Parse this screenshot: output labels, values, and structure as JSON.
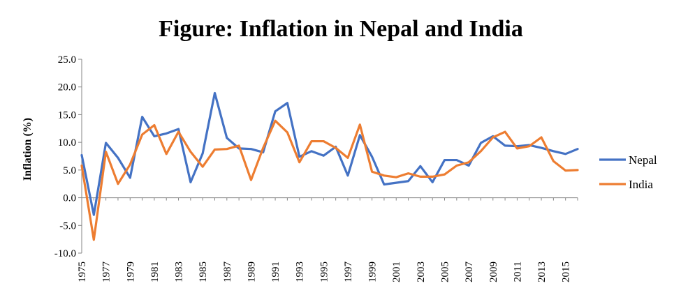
{
  "chart_data": {
    "type": "line",
    "title": "Figure: Inflation in Nepal and India",
    "xlabel": "",
    "ylabel": "Inflation (%)",
    "ylim": [
      -10,
      25
    ],
    "yticks": [
      "25.0",
      "20.0",
      "15.0",
      "10.0",
      "5.0",
      "0.0",
      "-5.0",
      "-10.0"
    ],
    "ytick_values": [
      25,
      20,
      15,
      10,
      5,
      0,
      -5,
      -10
    ],
    "x": [
      1975,
      1976,
      1977,
      1978,
      1979,
      1980,
      1981,
      1982,
      1983,
      1984,
      1985,
      1986,
      1987,
      1988,
      1989,
      1990,
      1991,
      1992,
      1993,
      1994,
      1995,
      1996,
      1997,
      1998,
      1999,
      2000,
      2001,
      2002,
      2003,
      2004,
      2005,
      2006,
      2007,
      2008,
      2009,
      2010,
      2011,
      2012,
      2013,
      2014,
      2015,
      2016
    ],
    "xtick_labels": [
      "1975",
      "1977",
      "1979",
      "1981",
      "1983",
      "1985",
      "1987",
      "1989",
      "1991",
      "1993",
      "1995",
      "1997",
      "1999",
      "2001",
      "2003",
      "2005",
      "2007",
      "2009",
      "2011",
      "2013",
      "2015"
    ],
    "legend_position": "right",
    "grid": false,
    "series": [
      {
        "name": "Nepal",
        "color": "#4472C4",
        "values": [
          7.7,
          -3.1,
          9.9,
          7.2,
          3.6,
          14.6,
          11.1,
          11.6,
          12.4,
          2.8,
          8.0,
          18.9,
          10.8,
          8.9,
          8.8,
          8.2,
          15.6,
          17.1,
          7.4,
          8.4,
          7.6,
          9.2,
          4.0,
          11.3,
          7.4,
          2.4,
          2.7,
          3.0,
          5.7,
          2.8,
          6.8,
          6.8,
          5.8,
          9.9,
          11.1,
          9.4,
          9.3,
          9.5,
          9.0,
          8.4,
          7.9,
          8.8
        ]
      },
      {
        "name": "India",
        "color": "#ED7D31",
        "values": [
          5.8,
          -7.6,
          8.3,
          2.5,
          6.0,
          11.4,
          13.1,
          7.9,
          11.9,
          8.3,
          5.6,
          8.7,
          8.8,
          9.4,
          3.2,
          9.0,
          13.9,
          11.8,
          6.4,
          10.2,
          10.2,
          9.0,
          7.2,
          13.2,
          4.7,
          4.0,
          3.7,
          4.4,
          3.8,
          3.8,
          4.2,
          5.8,
          6.4,
          8.4,
          10.9,
          11.9,
          8.9,
          9.3,
          10.9,
          6.6,
          4.9,
          5.0
        ]
      }
    ]
  }
}
